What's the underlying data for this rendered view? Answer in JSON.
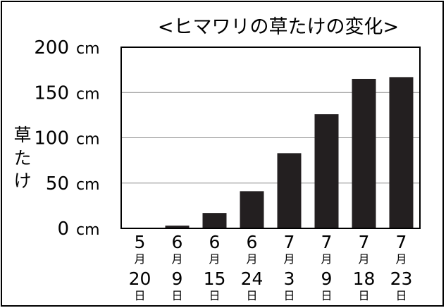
{
  "chart_data": {
    "type": "bar",
    "title": "<ヒマワリの草たけの変化>",
    "ylabel": "草たけ",
    "y_unit": "cm",
    "ylim": [
      0,
      200
    ],
    "yticks": [
      0,
      50,
      100,
      150,
      200
    ],
    "grid": true,
    "categories": [
      {
        "month": "5",
        "day": "20",
        "month_unit": "月",
        "day_unit": "日"
      },
      {
        "month": "6",
        "day": "9",
        "month_unit": "月",
        "day_unit": "日"
      },
      {
        "month": "6",
        "day": "15",
        "month_unit": "月",
        "day_unit": "日"
      },
      {
        "month": "6",
        "day": "24",
        "month_unit": "月",
        "day_unit": "日"
      },
      {
        "month": "7",
        "day": "3",
        "month_unit": "月",
        "day_unit": "日"
      },
      {
        "month": "7",
        "day": "9",
        "month_unit": "月",
        "day_unit": "日"
      },
      {
        "month": "7",
        "day": "18",
        "month_unit": "月",
        "day_unit": "日"
      },
      {
        "month": "7",
        "day": "23",
        "month_unit": "月",
        "day_unit": "日"
      }
    ],
    "values": [
      0,
      3,
      17,
      41,
      83,
      126,
      165,
      167
    ],
    "bar_color": "#231f20"
  }
}
